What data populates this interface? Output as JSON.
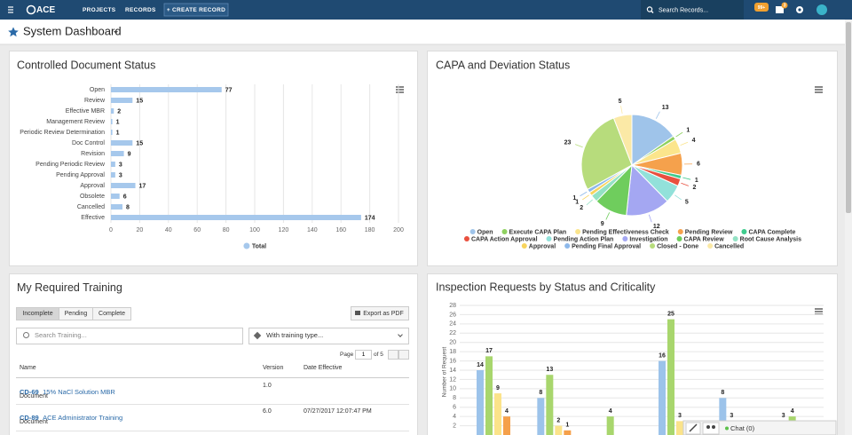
{
  "nav": {
    "logo": "ACE",
    "links": [
      "PROJECTS",
      "RECORDS"
    ],
    "create": "+ CREATE RECORD",
    "search": "Search Records...",
    "badges": [
      "99+",
      "3"
    ]
  },
  "header": {
    "title": "System Dashboard"
  },
  "chart_data": [
    {
      "type": "bar",
      "orientation": "horizontal",
      "title": "Controlled Document Status",
      "categories": [
        "Open",
        "Review",
        "Effective MBR",
        "Management Review",
        "Periodic Review Determination",
        "Doc Control",
        "Revision",
        "Pending Periodic Review",
        "Pending Approval",
        "Approval",
        "Obsolete",
        "Cancelled",
        "Effective"
      ],
      "series": [
        {
          "name": "Total",
          "color": "#a6c8ec",
          "values": [
            77,
            15,
            2,
            1,
            1,
            15,
            9,
            3,
            3,
            17,
            6,
            8,
            174
          ]
        }
      ],
      "xlim": [
        0,
        200
      ],
      "xticks": [
        0,
        20,
        40,
        60,
        80,
        100,
        120,
        140,
        160,
        180,
        200
      ],
      "grid": true,
      "legend": "bottom"
    },
    {
      "type": "pie",
      "title": "CAPA and Deviation Status",
      "categories": [
        "Open",
        "Execute CAPA Plan",
        "Pending Effectiveness Check",
        "Pending Review",
        "CAPA Complete",
        "CAPA Action Approval",
        "Pending Action Plan",
        "Investigation",
        "CAPA Review",
        "Root Cause Analysis",
        "Approval",
        "Pending Final Approval",
        "Closed - Done",
        "Cancelled"
      ],
      "values": [
        13,
        1,
        4,
        6,
        1,
        2,
        5,
        12,
        9,
        2,
        1,
        1,
        23,
        5
      ],
      "colors": [
        "#9fc4ea",
        "#8fd160",
        "#fbe58c",
        "#f5a14c",
        "#3fcb8d",
        "#e9503f",
        "#92e1da",
        "#a4a7f2",
        "#6fcd5d",
        "#93e2c4",
        "#f8d45c",
        "#8db8ea",
        "#b7dc7c",
        "#fbe9a6"
      ],
      "legend": "bottom"
    },
    {
      "type": "bar",
      "orientation": "vertical",
      "title": "Inspection Requests by Status and Criticality",
      "y_label": "Number of Request",
      "categories": [
        null,
        null,
        null,
        null,
        null,
        null
      ],
      "series": [
        {
          "color": "#9cc3ea",
          "values": [
            14,
            8,
            0,
            16,
            8,
            3
          ]
        },
        {
          "color": "#a8d66d",
          "values": [
            17,
            13,
            4,
            25,
            3,
            4
          ]
        },
        {
          "color": "#fbe38a",
          "values": [
            9,
            2,
            0,
            3,
            0,
            0
          ]
        },
        {
          "color": "#f5a04a",
          "values": [
            4,
            1,
            0,
            0,
            0,
            0
          ]
        }
      ],
      "ylim": [
        0,
        28
      ],
      "yticks": [
        2,
        4,
        6,
        8,
        10,
        12,
        14,
        16,
        18,
        20,
        22,
        24,
        26,
        28
      ],
      "grid": true
    }
  ],
  "training": {
    "title": "My Required Training",
    "tabs": [
      "Incomplete",
      "Pending",
      "Complete"
    ],
    "export": "Export as PDF",
    "search_placeholder": "Search Training...",
    "filter": "With training type...",
    "page_label": "Page",
    "page": "1",
    "page_total": "of 5",
    "columns": [
      "Name",
      "Version",
      "Date Effective"
    ],
    "rows": [
      {
        "id": "CD-69",
        "name": "15% NaCl Solution MBR",
        "type": "Document",
        "version": "1.0"
      },
      {
        "id": "CD-89",
        "name": "ACE Administrator Training",
        "type": "Document",
        "version": "6.0",
        "date": "07/27/2017 12:07:47 PM"
      }
    ]
  },
  "chat": "Chat (0)"
}
